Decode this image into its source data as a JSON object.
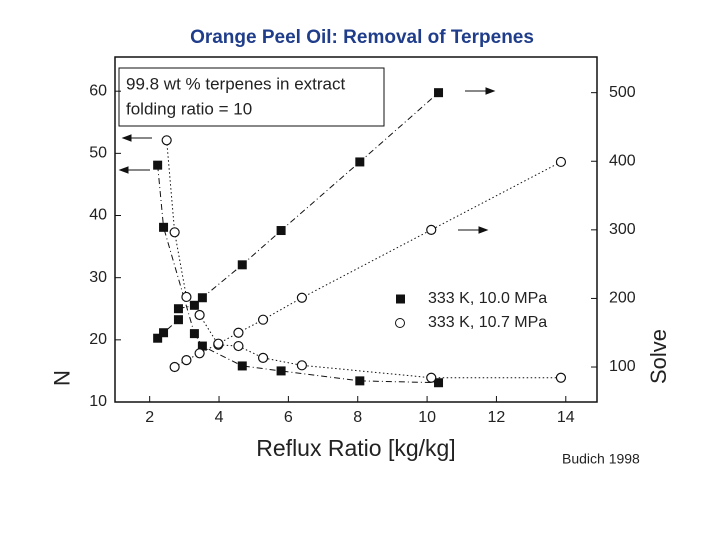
{
  "chart_data": {
    "type": "scatter",
    "title": "Orange Peel Oil: Removal of Terpenes",
    "xlabel": "Reflux Ratio [kg/kg]",
    "ylabel": "N",
    "y2label": "Solve",
    "annotations": [
      "99.8 wt % terpenes in extract",
      "folding ratio = 10"
    ],
    "credit": "Budich 1998",
    "xlim": [
      1,
      14.9
    ],
    "xticks": [
      2,
      4,
      6,
      8,
      10,
      12,
      14
    ],
    "ylim": [
      10,
      65.5
    ],
    "yticks": [
      10,
      20,
      30,
      40,
      50,
      60
    ],
    "y2lim": [
      49,
      552
    ],
    "y2ticks": [
      100,
      200,
      300,
      400,
      500
    ],
    "series": [
      {
        "name": "333 K, 10.0 MPa",
        "marker": "square",
        "color": "#111111",
        "axis": "y2",
        "x": [
          2.23,
          2.4,
          2.83,
          2.83,
          3.29,
          3.52,
          4.67,
          5.79,
          8.06,
          10.33
        ],
        "values": [
          142,
          150,
          169,
          185,
          190,
          201,
          249,
          299,
          399,
          500
        ]
      },
      {
        "marker": "square",
        "color": "#111111",
        "x": [
          2.23,
          2.4,
          3.29,
          3.52,
          4.67,
          5.79,
          8.06,
          10.33
        ],
        "values": [
          48.1,
          38.1,
          21.0,
          19.0,
          15.8,
          15.0,
          13.4,
          13.1
        ]
      },
      {
        "name": "333 K, 10.7 MPa",
        "marker": "circle",
        "color": "#111111",
        "x": [
          2.49,
          2.72,
          3.06,
          3.44,
          3.98,
          4.56,
          5.27,
          6.39,
          10.12,
          13.86
        ],
        "values": [
          52.1,
          37.3,
          26.9,
          24.0,
          19.2,
          19.0,
          17.1,
          15.9,
          13.9,
          13.9
        ]
      },
      {
        "marker": "circle",
        "color": "#111111",
        "axis": "y2",
        "x": [
          2.72,
          3.06,
          3.44,
          3.98,
          4.56,
          5.27,
          6.39,
          10.12,
          13.86
        ],
        "values": [
          100,
          110,
          120,
          134,
          150,
          169,
          201,
          300,
          399
        ]
      }
    ]
  }
}
